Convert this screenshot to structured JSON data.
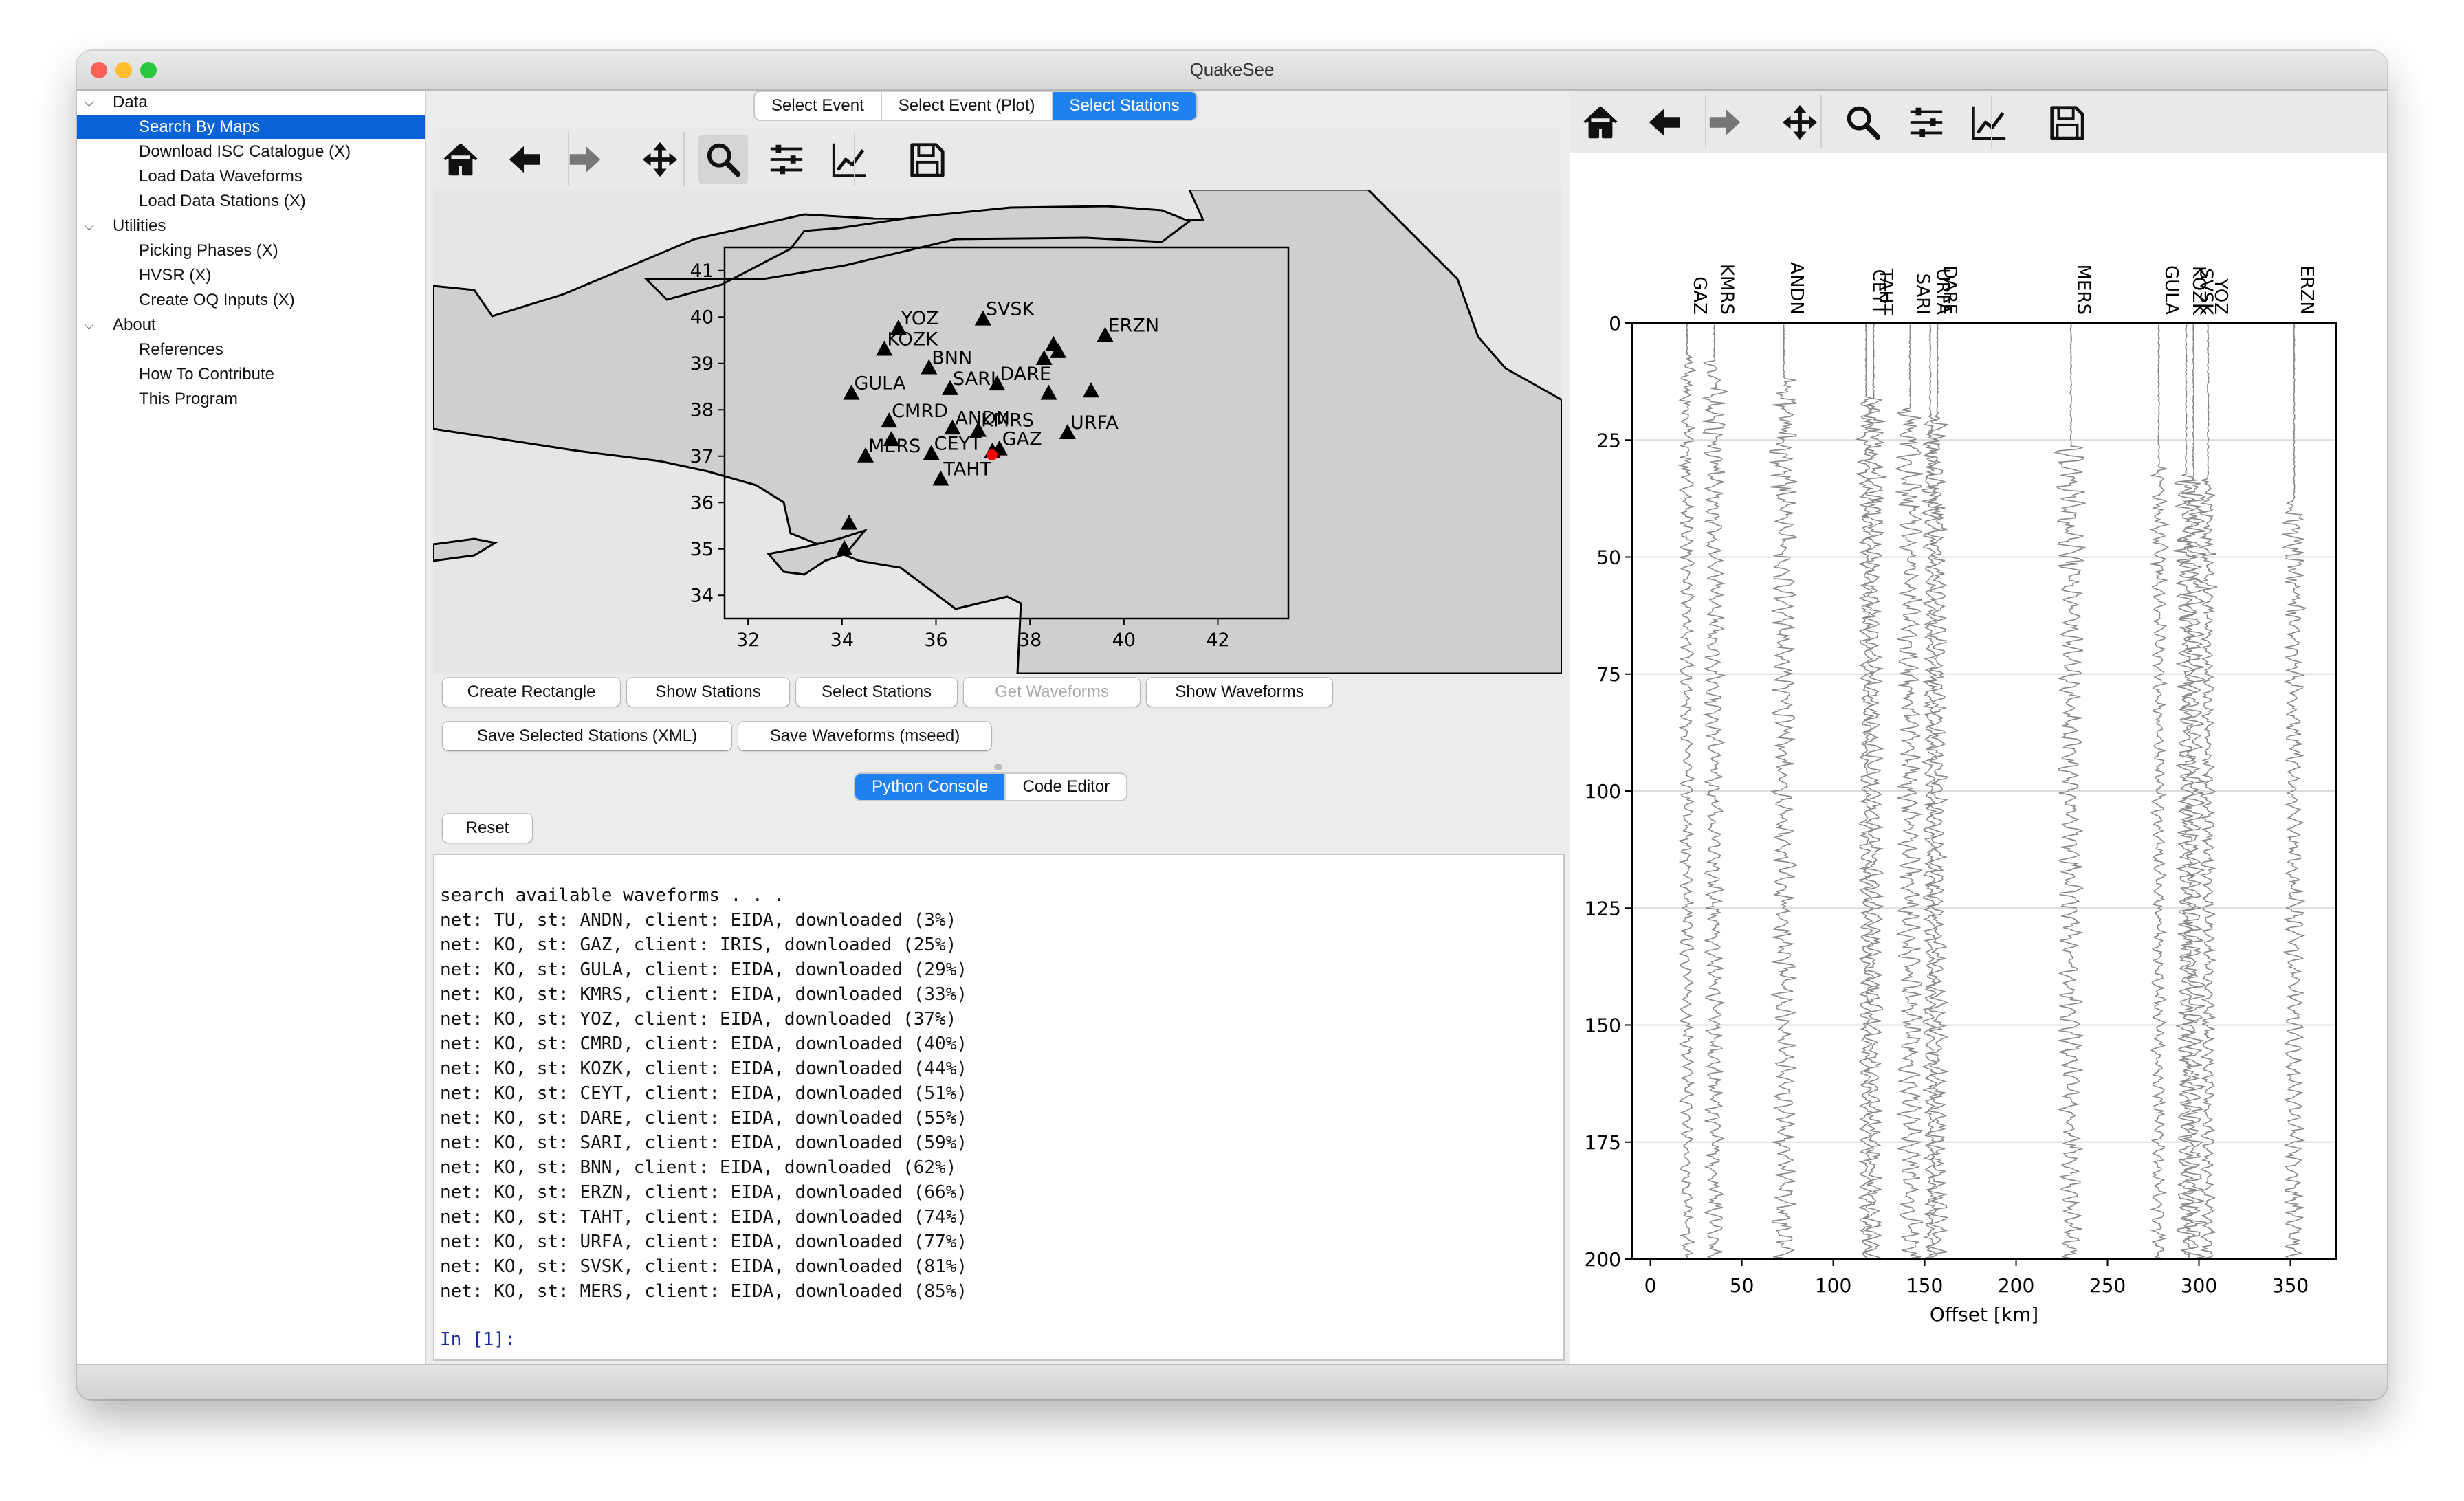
{
  "window": {
    "title": "QuakeSee"
  },
  "sidebar": {
    "groups": [
      {
        "label": "Data",
        "items": [
          "Search By Maps",
          "Download ISC Catalogue (X)",
          "Load Data Waveforms",
          "Load Data Stations (X)"
        ]
      },
      {
        "label": "Utilities",
        "items": [
          "Picking Phases (X)",
          "HVSR (X)",
          "Create OQ Inputs (X)"
        ]
      },
      {
        "label": "About",
        "items": [
          "References",
          "How To Contribute",
          "This Program"
        ]
      }
    ],
    "selected": "Search By Maps"
  },
  "top_tabs": [
    "Select Event",
    "Select Event (Plot)",
    "Select Stations"
  ],
  "active_top_tab": "Select Stations",
  "toolbar_icons": [
    "home-icon",
    "back-arrow-icon",
    "forward-arrow-icon",
    "pan-icon",
    "zoom-icon",
    "configure-subplots-icon",
    "edit-axis-icon",
    "save-icon"
  ],
  "map": {
    "x_ticks": [
      "32",
      "34",
      "36",
      "38",
      "40",
      "42"
    ],
    "y_ticks": [
      "41",
      "40",
      "39",
      "38",
      "37",
      "36",
      "35",
      "34"
    ],
    "stations": [
      "YOZ",
      "SVSK",
      "ERZN",
      "KOZK",
      "BNN",
      "SARI",
      "DARE",
      "GULA",
      "CMRD",
      "ANDN",
      "KMRS",
      "URFA",
      "GAZ",
      "CEYT",
      "MERS",
      "TAHT"
    ]
  },
  "actions_row1": [
    "Create Rectangle",
    "Show Stations",
    "Select Stations",
    "Get Waveforms",
    "Show Waveforms"
  ],
  "actions_row2": [
    "Save Selected Stations (XML)",
    "Save Waveforms (mseed)"
  ],
  "console_tabs": [
    "Python Console",
    "Code Editor"
  ],
  "active_console_tab": "Python Console",
  "reset_label": "Reset",
  "console": {
    "lines": [
      "search available waveforms . . .",
      "net: TU, st: ANDN, client: EIDA, downloaded (3%)",
      "net: KO, st: GAZ, client: IRIS, downloaded (25%)",
      "net: KO, st: GULA, client: EIDA, downloaded (29%)",
      "net: KO, st: KMRS, client: EIDA, downloaded (33%)",
      "net: KO, st: YOZ, client: EIDA, downloaded (37%)",
      "net: KO, st: CMRD, client: EIDA, downloaded (40%)",
      "net: KO, st: KOZK, client: EIDA, downloaded (44%)",
      "net: KO, st: CEYT, client: EIDA, downloaded (51%)",
      "net: KO, st: DARE, client: EIDA, downloaded (55%)",
      "net: KO, st: SARI, client: EIDA, downloaded (59%)",
      "net: KO, st: BNN, client: EIDA, downloaded (62%)",
      "net: KO, st: ERZN, client: EIDA, downloaded (66%)",
      "net: KO, st: TAHT, client: EIDA, downloaded (74%)",
      "net: KO, st: URFA, client: EIDA, downloaded (77%)",
      "net: KO, st: SVSK, client: EIDA, downloaded (81%)",
      "net: KO, st: MERS, client: EIDA, downloaded (85%)"
    ],
    "prompt": "In [1]:"
  },
  "chart_data": {
    "type": "line",
    "xlabel": "Offset [km]",
    "ylabel": "",
    "xlim": [
      -10,
      375
    ],
    "ylim": [
      0,
      200
    ],
    "x_ticks": [
      0,
      50,
      100,
      150,
      200,
      250,
      300,
      350
    ],
    "y_ticks": [
      0,
      25,
      50,
      75,
      100,
      125,
      150,
      175,
      200
    ],
    "y_inverted": true,
    "grid": true,
    "series": [
      {
        "name": "GAZ",
        "offset": 20
      },
      {
        "name": "KMRS",
        "offset": 35
      },
      {
        "name": "ANDN",
        "offset": 73
      },
      {
        "name": "CEYT",
        "offset": 118
      },
      {
        "name": "TAHT",
        "offset": 122
      },
      {
        "name": "SARI",
        "offset": 142
      },
      {
        "name": "URFA",
        "offset": 153
      },
      {
        "name": "DARE",
        "offset": 157
      },
      {
        "name": "MERS",
        "offset": 230
      },
      {
        "name": "GULA",
        "offset": 278
      },
      {
        "name": "KOZK",
        "offset": 293
      },
      {
        "name": "SVSK",
        "offset": 297
      },
      {
        "name": "YOZ",
        "offset": 305
      },
      {
        "name": "ERZN",
        "offset": 352
      }
    ]
  }
}
